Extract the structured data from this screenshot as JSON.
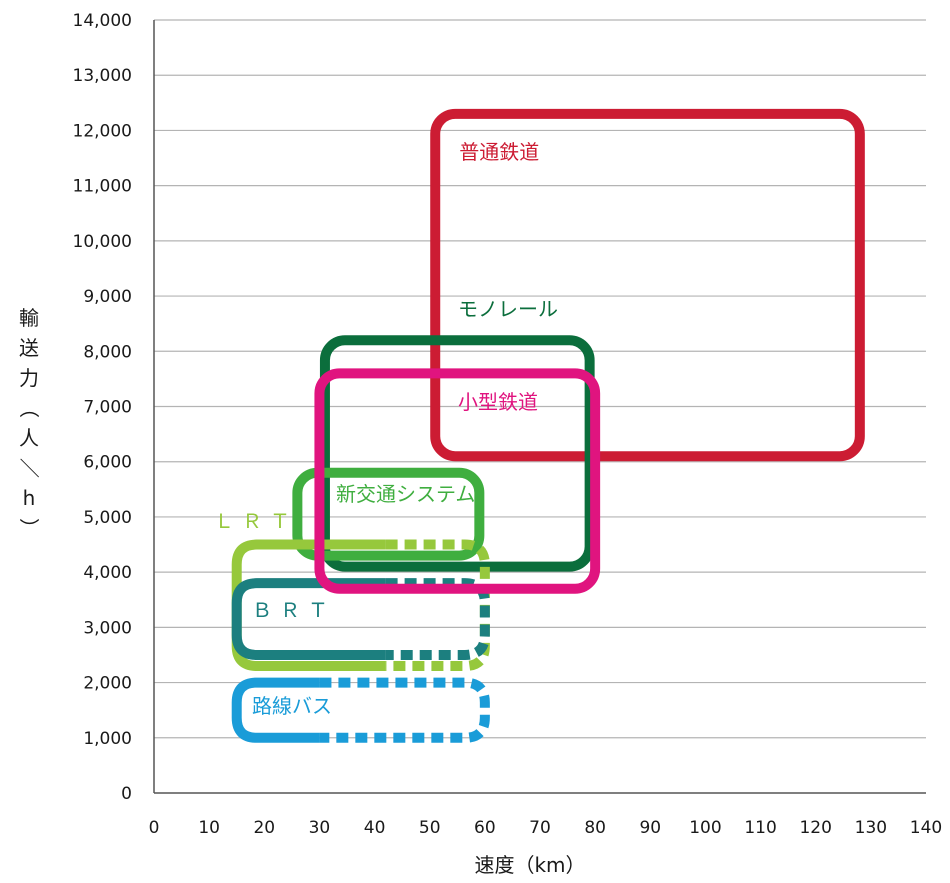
{
  "chart_data": {
    "type": "range-boxes",
    "xlabel": "速度（km）",
    "ylabel": "輸送力（人／h）",
    "xlim": [
      0,
      140
    ],
    "ylim": [
      0,
      14000
    ],
    "x_ticks": [
      "0",
      "10",
      "20",
      "30",
      "40",
      "50",
      "60",
      "70",
      "80",
      "90",
      "100",
      "110",
      "120",
      "130",
      "140"
    ],
    "y_ticks": [
      "0",
      "1,000",
      "2,000",
      "3,000",
      "4,000",
      "5,000",
      "6,000",
      "7,000",
      "8,000",
      "9,000",
      "10,000",
      "11,000",
      "12,000",
      "13,000",
      "14,000"
    ],
    "grid": "horizontal",
    "series": [
      {
        "name": "路線バス",
        "color": "#1a9cd8",
        "speed_min": 15,
        "speed_max": 60,
        "speed_max_solid": 30,
        "capacity_min": 1000,
        "capacity_max": 2000,
        "label_pos": "left"
      },
      {
        "name": "ＢＲＴ",
        "color": "#1c7f7f",
        "speed_min": 15,
        "speed_max": 60,
        "speed_max_solid": 42,
        "capacity_min": 2500,
        "capacity_max": 3800,
        "label_pos": "inside"
      },
      {
        "name": "ＬＲＴ",
        "color": "#96c83c",
        "speed_min": 15,
        "speed_max": 60,
        "speed_max_solid": 42,
        "capacity_min": 2300,
        "capacity_max": 4500,
        "label_pos": "above"
      },
      {
        "name": "新交通システム",
        "color": "#3fae3f",
        "speed_min": 26,
        "speed_max": 59,
        "capacity_min": 4300,
        "capacity_max": 5800,
        "label_pos": "inside"
      },
      {
        "name": "モノレール",
        "color": "#0b6e3c",
        "speed_min": 31,
        "speed_max": 79,
        "capacity_min": 4100,
        "capacity_max": 8200,
        "label_pos": "above"
      },
      {
        "name": "小型鉄道",
        "color": "#e0147f",
        "speed_min": 30,
        "speed_max": 80,
        "capacity_min": 3700,
        "capacity_max": 7600,
        "label_pos": "inside"
      },
      {
        "name": "普通鉄道",
        "color": "#cc1c33",
        "speed_min": 51,
        "speed_max": 128,
        "capacity_min": 6100,
        "capacity_max": 12300,
        "label_pos": "inside"
      }
    ]
  }
}
